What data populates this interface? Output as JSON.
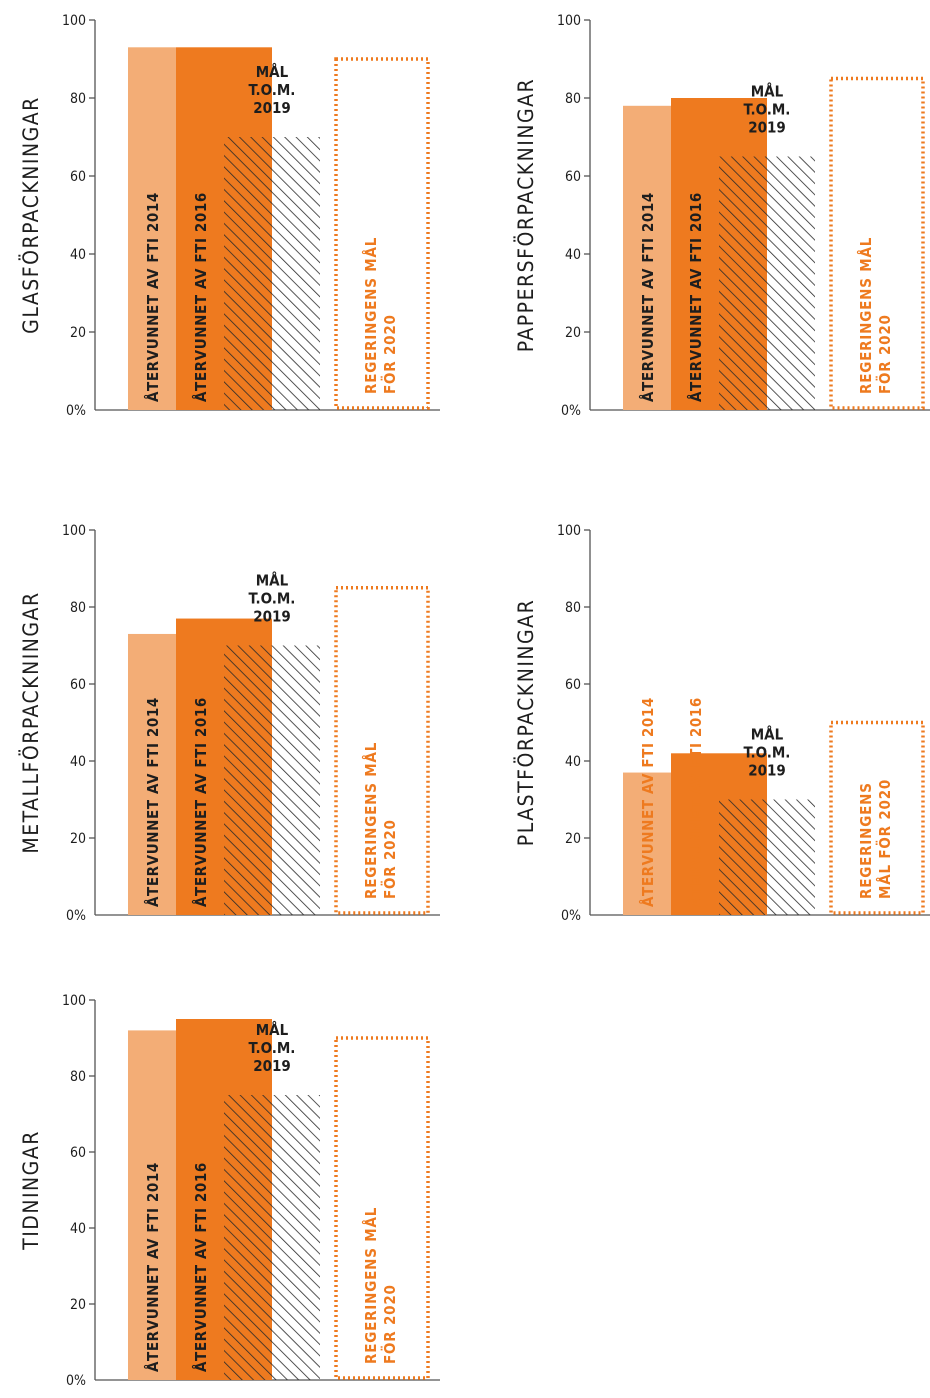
{
  "colors": {
    "light_orange": "#f3ad76",
    "orange": "#ee7a1f",
    "hatch": "#2a2a2a",
    "axis": "#555555",
    "text": "#1e1e1e",
    "goal_text": "#ee7a1f"
  },
  "chart_data": [
    {
      "type": "bar",
      "ylabel": "GLASFÖRPACKNINGAR",
      "yticks": [
        "0%",
        "20",
        "40",
        "60",
        "80",
        "100"
      ],
      "ylim": [
        0,
        100
      ],
      "bars": [
        {
          "label": "ÅTERVUNNET AV FTI 2014",
          "value": 93
        },
        {
          "label": "ÅTERVUNNET AV FTI 2016",
          "value": 93
        },
        {
          "label": [
            "MÅL",
            "T.O.M.",
            "2019"
          ],
          "value": 70
        },
        {
          "label": [
            "REGERINGENS MÅL",
            "FÖR 2020"
          ],
          "value": 90
        }
      ]
    },
    {
      "type": "bar",
      "ylabel": "PAPPERSFÖRPACKNINGAR",
      "yticks": [
        "0%",
        "20",
        "40",
        "60",
        "80",
        "100"
      ],
      "ylim": [
        0,
        100
      ],
      "bars": [
        {
          "label": "ÅTERVUNNET AV FTI 2014",
          "value": 78
        },
        {
          "label": "ÅTERVUNNET AV FTI 2016",
          "value": 80
        },
        {
          "label": [
            "MÅL",
            "T.O.M.",
            "2019"
          ],
          "value": 65
        },
        {
          "label": [
            "REGERINGENS MÅL",
            "FÖR 2020"
          ],
          "value": 85
        }
      ]
    },
    {
      "type": "bar",
      "ylabel": "METALLFÖRPACKNINGAR",
      "yticks": [
        "0%",
        "20",
        "40",
        "60",
        "80",
        "100"
      ],
      "ylim": [
        0,
        100
      ],
      "bars": [
        {
          "label": "ÅTERVUNNET AV FTI 2014",
          "value": 73
        },
        {
          "label": "ÅTERVUNNET AV FTI 2016",
          "value": 77
        },
        {
          "label": [
            "MÅL",
            "T.O.M.",
            "2019"
          ],
          "value": 70
        },
        {
          "label": [
            "REGERINGENS MÅL",
            "FÖR 2020"
          ],
          "value": 85
        }
      ]
    },
    {
      "type": "bar",
      "ylabel": "PLASTFÖRPACKNINGAR",
      "yticks": [
        "0%",
        "20",
        "40",
        "60",
        "80",
        "100"
      ],
      "ylim": [
        0,
        100
      ],
      "bars": [
        {
          "label": "ÅTERVUNNET AV FTI 2014",
          "value": 37
        },
        {
          "label": "ÅTERVUNNET AV FTI 2016",
          "value": 42
        },
        {
          "label": [
            "MÅL",
            "T.O.M.",
            "2019"
          ],
          "value": 30
        },
        {
          "label": [
            "REGERINGENS",
            "MÅL FÖR 2020"
          ],
          "value": 50
        }
      ]
    },
    {
      "type": "bar",
      "ylabel": "TIDNINGAR",
      "yticks": [
        "0%",
        "20",
        "40",
        "60",
        "80",
        "100"
      ],
      "ylim": [
        0,
        100
      ],
      "bars": [
        {
          "label": "ÅTERVUNNET AV FTI 2014",
          "value": 92
        },
        {
          "label": "ÅTERVUNNET AV FTI 2016",
          "value": 95
        },
        {
          "label": [
            "MÅL",
            "T.O.M.",
            "2019"
          ],
          "value": 75
        },
        {
          "label": [
            "REGERINGENS MÅL",
            "FÖR 2020"
          ],
          "value": 90
        }
      ]
    }
  ]
}
